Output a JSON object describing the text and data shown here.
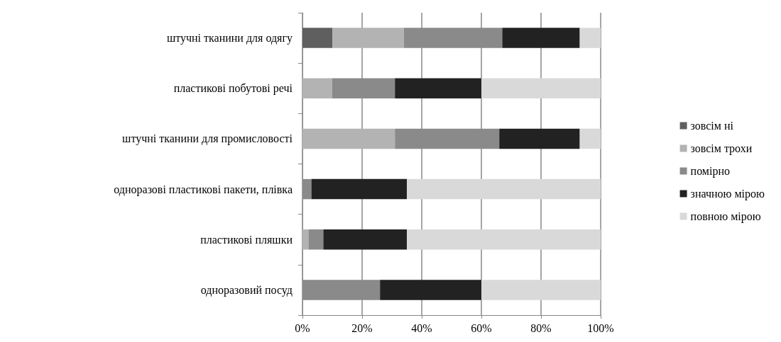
{
  "chart_data": {
    "type": "bar",
    "orientation": "horizontal",
    "stacked": true,
    "categories": [
      "штучні тканини для одягу",
      "пластикові побутові речі",
      "штучні тканини для промисловості",
      "одноразові пластикові пакети, плівка",
      "пластикові пляшки",
      "одноразовий посуд"
    ],
    "series": [
      {
        "name": "зовсім ні",
        "color": "#5f5f5f",
        "values": [
          10,
          0,
          0,
          0,
          0,
          0
        ]
      },
      {
        "name": "зовсім трохи",
        "color": "#b3b3b3",
        "values": [
          24,
          10,
          31,
          0,
          2,
          0
        ]
      },
      {
        "name": "помірно",
        "color": "#8a8a8a",
        "values": [
          33,
          21,
          35,
          3,
          5,
          26
        ]
      },
      {
        "name": "значною мірою",
        "color": "#222222",
        "values": [
          26,
          29,
          27,
          32,
          28,
          34
        ]
      },
      {
        "name": "повною мірою",
        "color": "#d9d9d9",
        "values": [
          7,
          40,
          7,
          65,
          65,
          40
        ]
      }
    ],
    "xlim": [
      0,
      100
    ],
    "xticks": [
      {
        "value": 0,
        "label": "0%"
      },
      {
        "value": 20,
        "label": "20%"
      },
      {
        "value": 40,
        "label": "40%"
      },
      {
        "value": 60,
        "label": "60%"
      },
      {
        "value": 80,
        "label": "80%"
      },
      {
        "value": 100,
        "label": "100%"
      }
    ],
    "grid": "x",
    "legend": "right"
  }
}
